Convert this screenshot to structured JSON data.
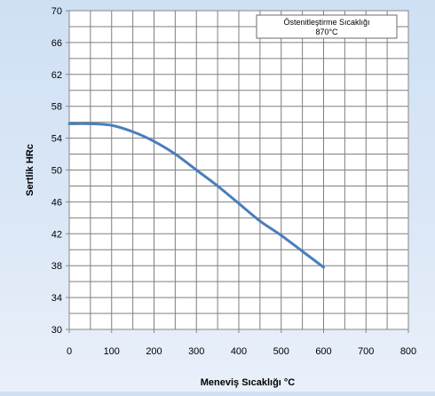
{
  "chart_data": {
    "type": "line",
    "title": "",
    "xlabel": "Meneviş Sıcaklığı  °C",
    "ylabel": "Sertlik HRc",
    "xlim": [
      0,
      800
    ],
    "ylim": [
      30,
      70
    ],
    "x_ticks": [
      "0",
      "100",
      "200",
      "300",
      "400",
      "500",
      "600",
      "700",
      "800"
    ],
    "y_ticks": [
      "30",
      "34",
      "38",
      "42",
      "46",
      "50",
      "54",
      "58",
      "62",
      "66",
      "70"
    ],
    "grid": true,
    "legend": "none",
    "annotation": {
      "line1": "Östenitleştirme Sıcaklığı",
      "line2": "870°C"
    },
    "series": [
      {
        "color": "#4a7ebb",
        "x": [
          0,
          50,
          100,
          150,
          200,
          250,
          300,
          350,
          400,
          450,
          500,
          550,
          600
        ],
        "y": [
          55.8,
          55.8,
          55.6,
          54.8,
          53.6,
          52.0,
          50.0,
          48.0,
          45.8,
          43.6,
          41.8,
          39.8,
          37.8
        ]
      }
    ]
  }
}
